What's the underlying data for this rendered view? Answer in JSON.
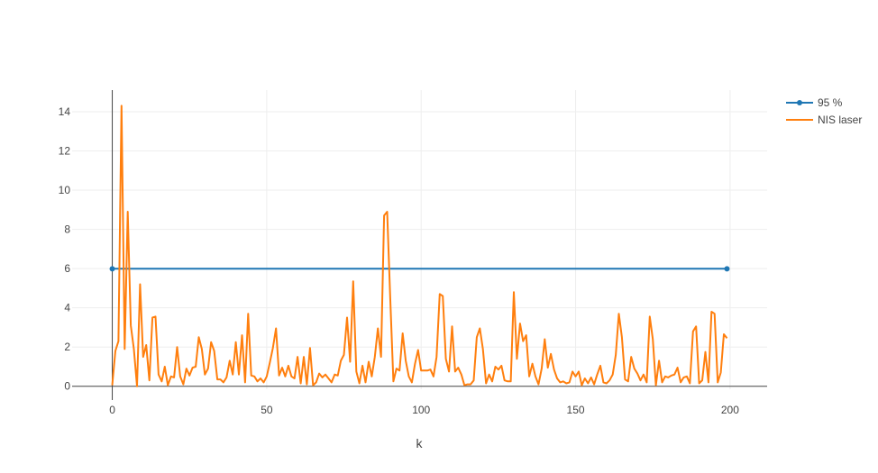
{
  "chart_data": {
    "type": "line",
    "title": "",
    "xlabel": "k",
    "ylabel": "",
    "xlim": [
      -13,
      212
    ],
    "ylim": [
      -0.15,
      15.1
    ],
    "x_ticks": [
      0,
      50,
      100,
      150,
      200
    ],
    "y_ticks": [
      0,
      2,
      4,
      6,
      8,
      10,
      12,
      14
    ],
    "grid": true,
    "legend": "top-right",
    "series": [
      {
        "name": "95 %",
        "color": "#1f77b4",
        "mode": "lines+markers",
        "x": [
          0,
          199
        ],
        "y": [
          5.99,
          5.99
        ]
      },
      {
        "name": "NIS laser",
        "color": "#ff7f0e",
        "mode": "lines",
        "x0": 0,
        "dx": 1,
        "y": [
          0.05,
          1.8,
          2.3,
          14.3,
          1.9,
          8.9,
          3.1,
          1.9,
          0.0,
          5.2,
          1.5,
          2.1,
          0.3,
          3.5,
          3.55,
          0.6,
          0.25,
          1.0,
          0.05,
          0.5,
          0.45,
          2.0,
          0.5,
          0.1,
          0.9,
          0.55,
          0.95,
          1.0,
          2.5,
          1.9,
          0.6,
          0.9,
          2.25,
          1.8,
          0.35,
          0.35,
          0.2,
          0.45,
          1.3,
          0.6,
          2.25,
          0.6,
          2.6,
          0.2,
          3.7,
          0.55,
          0.5,
          0.25,
          0.4,
          0.2,
          0.5,
          1.2,
          1.95,
          2.95,
          0.55,
          0.95,
          0.5,
          1.05,
          0.5,
          0.4,
          1.5,
          0.15,
          1.5,
          0.1,
          1.95,
          0.05,
          0.2,
          0.65,
          0.45,
          0.6,
          0.4,
          0.2,
          0.6,
          0.55,
          1.3,
          1.6,
          3.5,
          1.25,
          5.35,
          0.75,
          0.15,
          1.05,
          0.2,
          1.25,
          0.5,
          1.5,
          2.95,
          1.5,
          8.7,
          8.9,
          4.5,
          0.25,
          0.9,
          0.8,
          2.7,
          1.3,
          0.5,
          0.2,
          1.15,
          1.85,
          0.8,
          0.8,
          0.8,
          0.85,
          0.5,
          1.5,
          4.7,
          4.6,
          1.4,
          0.75,
          3.05,
          0.75,
          0.95,
          0.6,
          0.05,
          0.1,
          0.1,
          0.3,
          2.5,
          2.95,
          1.9,
          0.15,
          0.6,
          0.25,
          1.0,
          0.85,
          1.05,
          0.3,
          0.25,
          0.25,
          4.8,
          1.4,
          3.2,
          2.3,
          2.6,
          0.5,
          1.15,
          0.5,
          0.1,
          0.9,
          2.4,
          0.95,
          1.65,
          0.85,
          0.4,
          0.2,
          0.25,
          0.15,
          0.2,
          0.75,
          0.5,
          0.75,
          0.05,
          0.4,
          0.15,
          0.45,
          0.1,
          0.6,
          1.05,
          0.2,
          0.15,
          0.3,
          0.6,
          1.6,
          3.7,
          2.5,
          0.35,
          0.25,
          1.5,
          0.9,
          0.65,
          0.3,
          0.6,
          0.2,
          3.55,
          2.4,
          0.05,
          1.3,
          0.2,
          0.5,
          0.45,
          0.55,
          0.6,
          0.95,
          0.2,
          0.45,
          0.5,
          0.15,
          2.8,
          3.05,
          0.15,
          0.3,
          1.75,
          0.2,
          3.8,
          3.7,
          0.2,
          0.7,
          2.65,
          2.45
        ]
      }
    ]
  }
}
